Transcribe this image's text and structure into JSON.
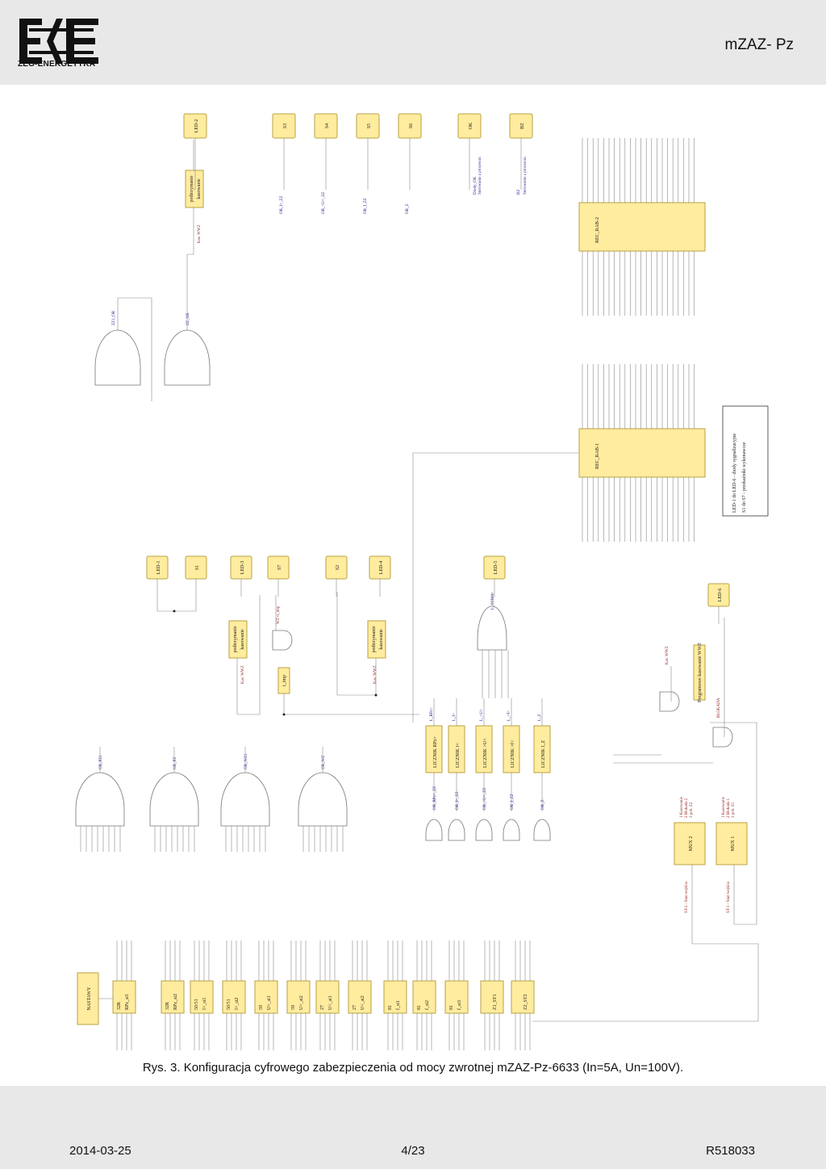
{
  "header": {
    "logo_text": "ZEG-ENERGETYKA",
    "doc_code": "mZAZ- Pz"
  },
  "footer": {
    "date": "2014-03-25",
    "page": "4/23",
    "code": "R518033"
  },
  "caption": "Rys. 3. Konfiguracja cyfrowego zabezpieczenia od mocy zwrotnej mZAZ-Pz-6633 (In=5A, Un=100V).",
  "diagram": {
    "settings_block": "NASTAWY",
    "protection_blocks": [
      {
        "code": "32R",
        "name": "RPz_st1"
      },
      {
        "code": "32R",
        "name": "RPz_st2"
      },
      {
        "code": "50/51",
        "name": "I>_st1"
      },
      {
        "code": "50/51",
        "name": "I>_st2"
      },
      {
        "code": "59",
        "name": "U>_st1"
      },
      {
        "code": "59",
        "name": "U>_st2"
      },
      {
        "code": "27",
        "name": "U<_st1"
      },
      {
        "code": "27",
        "name": "U<_st2"
      },
      {
        "code": "81",
        "name": "f_st1"
      },
      {
        "code": "81",
        "name": "f_st2"
      },
      {
        "code": "81",
        "name": "f_st3"
      },
      {
        "code": "",
        "name": "Z1_ST1"
      },
      {
        "code": "",
        "name": "Z2_ST2"
      }
    ],
    "or_gates_lower": [
      "OR_PZ1",
      "OR_PZ",
      "OR_WZ1",
      "OR_WZ"
    ],
    "counters": [
      "LICZNIK RPz>",
      "LICZNIK I<",
      "LICZNIK >U<",
      "LICZNIK >f<",
      "LICZNIK I_Z"
    ],
    "counter_outputs": [
      "L_RPz>",
      "L_I>",
      "L_>U<",
      "L_>f<",
      "L_Z"
    ],
    "sum_output": "L_SUMA",
    "mux_blocks": [
      "MUX 2",
      "MUX 1"
    ],
    "mux_inputs_2": [
      "1 Kasowanie",
      "2 Blokada 2",
      "3 pob. Z2"
    ],
    "mux_inputs_1": [
      "1 Kasowanie",
      "2 Blokada 1",
      "3 pob. Z1"
    ],
    "mux_outputs": [
      "ST-2 - Stan wejścia",
      "ST-1 - Stan wejścia"
    ],
    "prog_reset": "Programowe kasowanie WWZ",
    "blokada_label": "BLOKADA",
    "kas_label": "Kas. WWZ",
    "hold_reset": [
      "podtrzymanie",
      "kasowanie"
    ],
    "t_imp": "t_imp",
    "wz_imp": "WZ+t_imp",
    "out_leds_lower": [
      "LED-1",
      "S1",
      "LED-3",
      "S7",
      "S2",
      "LED-4",
      "LED-5",
      "LED-6"
    ],
    "out_leds_upper": [
      "LED-2",
      "S3",
      "S4",
      "S5",
      "S6",
      "OK",
      "BZ"
    ],
    "upper_or": [
      "ZZ1_OR",
      "ZZ_OR"
    ],
    "upper_signals": [
      "OR_I>_ZZ",
      "OR_>U<_ZZ",
      "OR_f_ZZ",
      "OR_Z"
    ],
    "ok_text": [
      "Diody_OK",
      "Sterowanie z procesora"
    ],
    "bz_text": [
      "BZ",
      "Sterowanie z procesora"
    ],
    "rec_blocks": [
      "REC_RAB-1",
      "REC_RAB-2"
    ],
    "legend": [
      "LED-1 do LED-6 - diody sygnalizacyjne",
      "S1 do S7 - przekaźniki wykonawcze"
    ],
    "lower_or_labels": [
      "OR_RPz>_ZZ",
      "OR_I>_ZZ",
      "OR_>U<_ZZ",
      "OR_f_ZZ",
      "OR_Z"
    ]
  }
}
